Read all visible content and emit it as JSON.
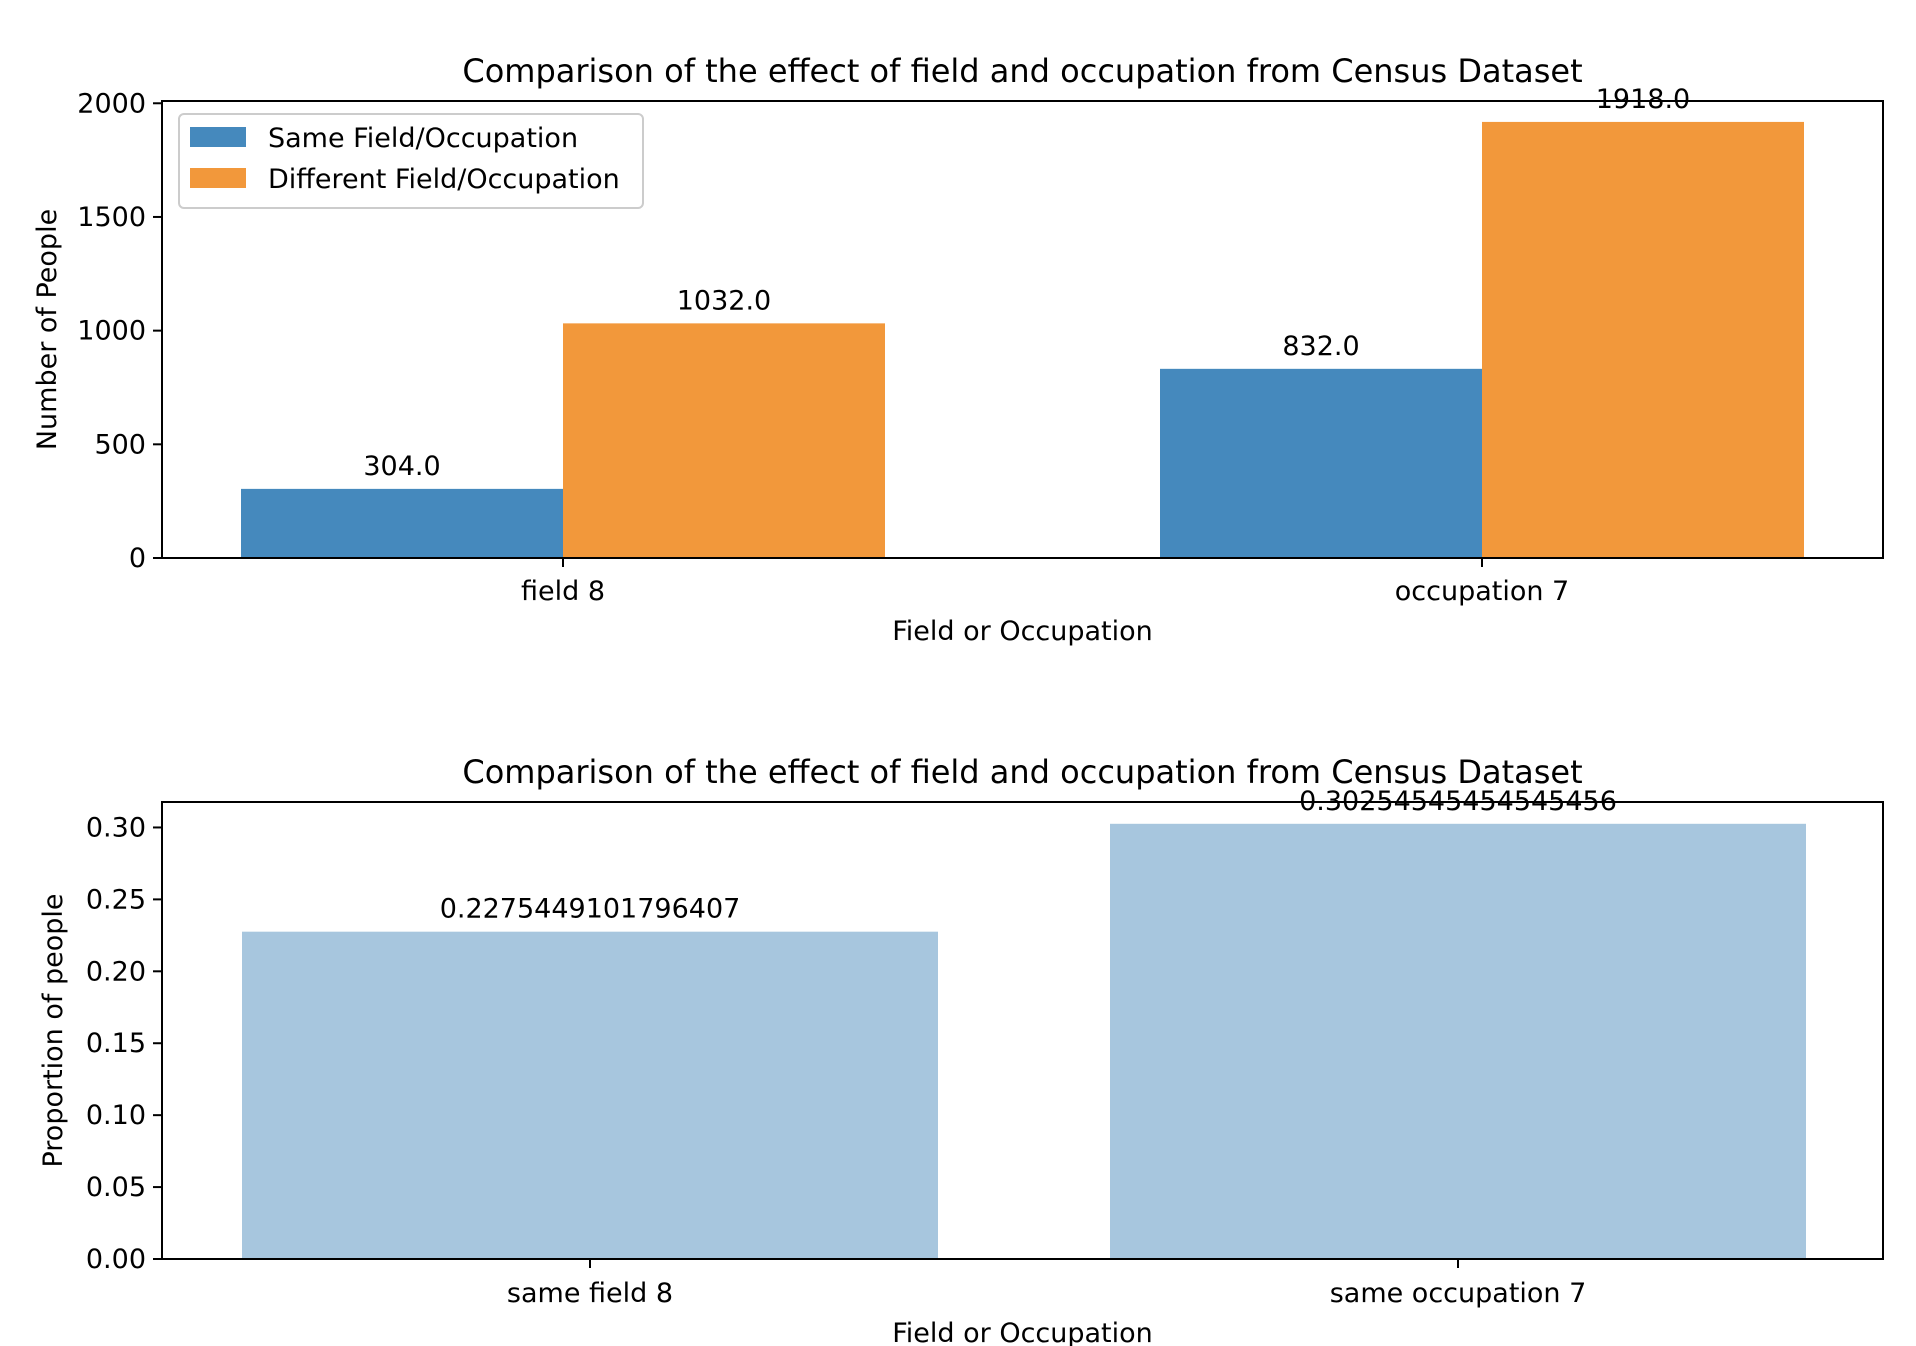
{
  "chart_data": [
    {
      "type": "bar",
      "title": "Comparison of the effect of field and occupation from Census Dataset",
      "xlabel": "Field or Occupation",
      "ylabel": "Number of People",
      "categories": [
        "field 8",
        "occupation 7"
      ],
      "series": [
        {
          "name": "Same Field/Occupation",
          "values": [
            304.0,
            832.0
          ],
          "color": "#4589bd"
        },
        {
          "name": "Different Field/Occupation",
          "values": [
            1032.0,
            1918.0
          ],
          "color": "#f2983b"
        }
      ],
      "value_labels": [
        [
          "304.0",
          "832.0"
        ],
        [
          "1032.0",
          "1918.0"
        ]
      ],
      "yticks": [
        "0",
        "500",
        "1000",
        "1500",
        "2000"
      ],
      "ylim": [
        0,
        2010
      ],
      "legend_position": "upper-left",
      "grid": false
    },
    {
      "type": "bar",
      "title": "Comparison of the effect of field and occupation from Census Dataset",
      "xlabel": "Field or Occupation",
      "ylabel": "Proportion of people",
      "categories": [
        "same field 8",
        "same occupation 7"
      ],
      "series": [
        {
          "values": [
            0.2275449101796407,
            0.30254545454545456
          ],
          "color": "#a7c6de"
        }
      ],
      "value_labels": [
        [
          "0.2275449101796407",
          "0.30254545454545456"
        ]
      ],
      "yticks": [
        "0.00",
        "0.05",
        "0.10",
        "0.15",
        "0.20",
        "0.25",
        "0.30"
      ],
      "ylim": [
        0,
        0.3177
      ],
      "grid": false
    }
  ]
}
